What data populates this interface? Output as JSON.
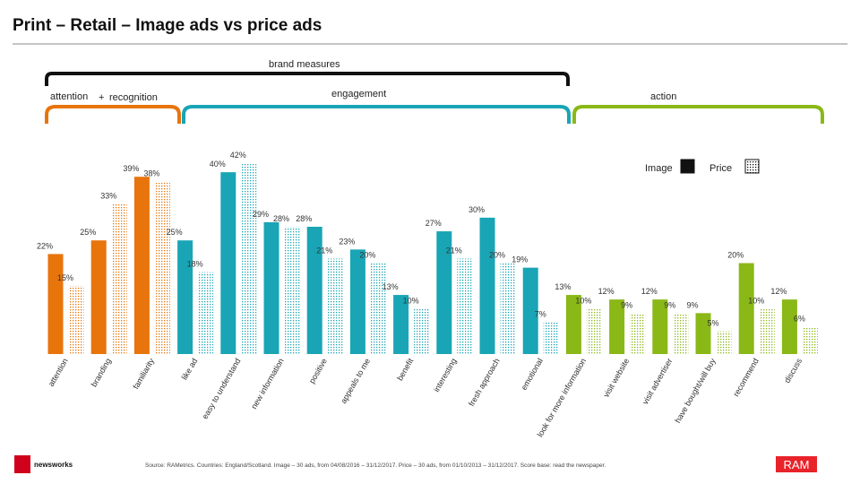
{
  "chart_data": {
    "type": "bar",
    "title": "Print – Retail – Image ads vs price ads",
    "annotations": {
      "brand_measures": "brand measures",
      "attention": "attention",
      "plus": "+",
      "recognition": "recognition",
      "engagement": "engagement",
      "action": "action"
    },
    "source": "Source: RAMetrics. Countries: England/Scotland. Image – 30 ads, from 04/08/2016 – 31/12/2017. Price – 30 ads, from 01/10/2013 – 31/12/2017. Score base: read the newspaper.",
    "logo_left": "newsworks",
    "logo_right": "RAM",
    "categories": [
      "attention",
      "branding",
      "familiarity",
      "like ad",
      "easy to understand",
      "new information",
      "positive",
      "appeals to me",
      "benefit",
      "interesting",
      "fresh approach",
      "emotional",
      "look for more information",
      "visit website",
      "visit advertiser",
      "have bought/will buy",
      "recommend",
      "discuss"
    ],
    "category_colors": [
      "#e8740c",
      "#e8740c",
      "#e8740c",
      "#19a5b5",
      "#19a5b5",
      "#19a5b5",
      "#19a5b5",
      "#19a5b5",
      "#19a5b5",
      "#19a5b5",
      "#19a5b5",
      "#19a5b5",
      "#8ab817",
      "#8ab817",
      "#8ab817",
      "#8ab817",
      "#8ab817",
      "#8ab817"
    ],
    "legend": "top-right",
    "series": [
      {
        "name": "Image",
        "color": "#111111",
        "pattern": "solid",
        "values": [
          22,
          25,
          39,
          25,
          40,
          29,
          28,
          23,
          13,
          27,
          30,
          19,
          13,
          12,
          12,
          9,
          20,
          12
        ],
        "value_labels": [
          "22%",
          "25%",
          "39%",
          "25%",
          "40%",
          "29%",
          "28%",
          "23%",
          "13%",
          "27%",
          "30%",
          "19%",
          "13%",
          "12%",
          "12%",
          "9%",
          "20%",
          "12%"
        ]
      },
      {
        "name": "Price",
        "color": "#111111",
        "pattern": "dotted",
        "values": [
          15,
          33,
          38,
          18,
          42,
          28,
          21,
          20,
          10,
          21,
          20,
          7,
          10,
          9,
          9,
          5,
          10,
          6
        ],
        "value_labels": [
          "15%",
          "33%",
          "38%",
          "18%",
          "42%",
          "28%",
          "21%",
          "20%",
          "10%",
          "21%",
          "20%",
          "7%",
          "10%",
          "9%",
          "9%",
          "5%",
          "10%",
          "6%"
        ]
      }
    ]
  }
}
